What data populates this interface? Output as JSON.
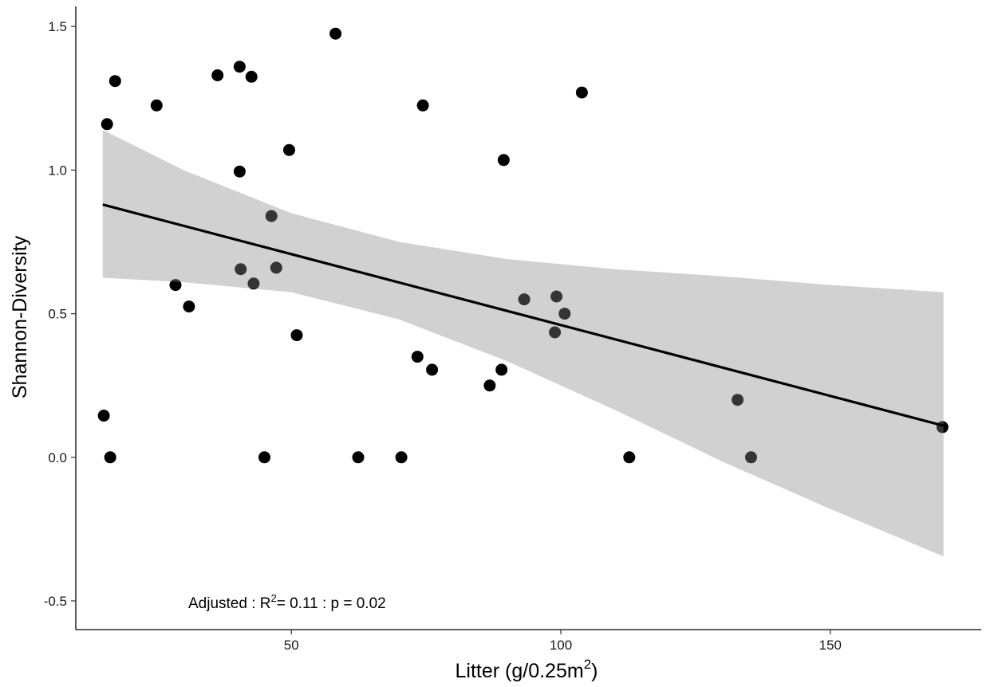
{
  "chart_data": {
    "type": "scatter",
    "title": "",
    "xlabel_text": "Litter (g/0.25m",
    "xlabel_sup": "2",
    "xlabel_close": ")",
    "ylabel": "Shannon-Diversity",
    "xlim": [
      10,
      178
    ],
    "ylim": [
      -0.6,
      1.57
    ],
    "xticks": [
      50,
      100,
      150
    ],
    "yticks": [
      -0.5,
      0.0,
      0.5,
      1.0,
      1.5
    ],
    "xtick_labels": [
      "50",
      "100",
      "150"
    ],
    "ytick_labels": [
      "-0.5",
      "0.0",
      "0.5",
      "1.0",
      "1.5"
    ],
    "grid": false,
    "annotation": {
      "prefix": "Adjusted : R",
      "sup": "2",
      "suffix": "= 0.11 : p = 0.02"
    },
    "fit_line": {
      "x": [
        15,
        171
      ],
      "y": [
        0.88,
        0.11
      ]
    },
    "confidence_band": {
      "x": [
        15,
        30,
        50,
        70,
        90,
        110,
        130,
        150,
        171
      ],
      "upper": [
        1.14,
        1.0,
        0.85,
        0.75,
        0.69,
        0.655,
        0.63,
        0.6,
        0.575
      ],
      "lower": [
        0.625,
        0.61,
        0.575,
        0.48,
        0.335,
        0.165,
        -0.015,
        -0.18,
        -0.345
      ]
    },
    "colors": {
      "point": "#000000",
      "band": "#d9d9d9",
      "line": "#000000"
    },
    "points": [
      {
        "x": 15.8,
        "y": 1.16
      },
      {
        "x": 17.3,
        "y": 1.31
      },
      {
        "x": 25,
        "y": 1.225
      },
      {
        "x": 36.3,
        "y": 1.33
      },
      {
        "x": 40.4,
        "y": 1.36
      },
      {
        "x": 42.6,
        "y": 1.325
      },
      {
        "x": 58.2,
        "y": 1.475
      },
      {
        "x": 74.4,
        "y": 1.225
      },
      {
        "x": 103.9,
        "y": 1.27
      },
      {
        "x": 49.6,
        "y": 1.07
      },
      {
        "x": 40.4,
        "y": 0.995
      },
      {
        "x": 89.4,
        "y": 1.035
      },
      {
        "x": 46.3,
        "y": 0.84
      },
      {
        "x": 40.6,
        "y": 0.655
      },
      {
        "x": 47.2,
        "y": 0.66
      },
      {
        "x": 43,
        "y": 0.605
      },
      {
        "x": 28.5,
        "y": 0.6
      },
      {
        "x": 31,
        "y": 0.525
      },
      {
        "x": 51,
        "y": 0.425
      },
      {
        "x": 93.2,
        "y": 0.55
      },
      {
        "x": 99.2,
        "y": 0.56
      },
      {
        "x": 100.7,
        "y": 0.5
      },
      {
        "x": 98.9,
        "y": 0.435
      },
      {
        "x": 73.4,
        "y": 0.35
      },
      {
        "x": 76.1,
        "y": 0.305
      },
      {
        "x": 89.0,
        "y": 0.305
      },
      {
        "x": 86.8,
        "y": 0.25
      },
      {
        "x": 15.2,
        "y": 0.145
      },
      {
        "x": 16.4,
        "y": 0.0
      },
      {
        "x": 45,
        "y": 0.0
      },
      {
        "x": 62.4,
        "y": 0.0
      },
      {
        "x": 70.4,
        "y": 0.0
      },
      {
        "x": 112.7,
        "y": 0.0
      },
      {
        "x": 132.8,
        "y": 0.2
      },
      {
        "x": 135.3,
        "y": 0.0
      },
      {
        "x": 170.8,
        "y": 0.105
      }
    ]
  }
}
